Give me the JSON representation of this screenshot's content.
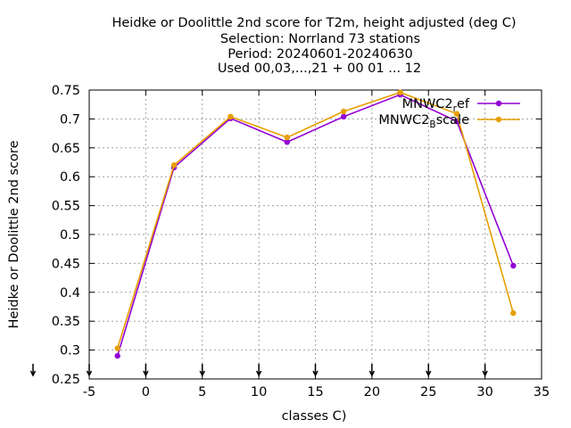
{
  "chart_data": {
    "type": "line",
    "title_lines": [
      "Heidke or Doolittle 2nd score  for T2m, height adjusted (deg C)",
      "Selection: Norrland     73 stations",
      "Period: 20240601-20240630",
      "Used 00,03,...,21 + 00 01 ... 12"
    ],
    "xlabel": "classes C)",
    "ylabel": "Heidke or Doolittle 2nd score",
    "xlim": [
      -5,
      35
    ],
    "ylim": [
      0.25,
      0.75
    ],
    "x_ticks": [
      "-5",
      "0",
      "5",
      "10",
      "15",
      "20",
      "25",
      "30",
      "35"
    ],
    "y_ticks": [
      "0.25",
      "0.3",
      "0.35",
      "0.4",
      "0.45",
      "0.5",
      "0.55",
      "0.6",
      "0.65",
      "0.7",
      "0.75"
    ],
    "grid": true,
    "legend_position": "top-right",
    "x": [
      -2.5,
      2.5,
      7.5,
      12.5,
      17.5,
      22.5,
      27.5,
      32.5
    ],
    "series": [
      {
        "name": "MNWC2_ref",
        "legend_main": "MNWC2",
        "legend_sub": "r",
        "legend_tail": "ef",
        "color": "#9400d3",
        "values": [
          0.29,
          0.616,
          0.701,
          0.66,
          0.704,
          0.742,
          0.696,
          0.446
        ]
      },
      {
        "name": "MNWC2_Bscale",
        "legend_main": "MNWC2",
        "legend_sub": "B",
        "legend_tail": "scale",
        "color": "#e69f00",
        "values": [
          0.303,
          0.62,
          0.704,
          0.668,
          0.713,
          0.746,
          0.709,
          0.364
        ]
      }
    ],
    "bottom_arrow_x": [
      -7.5,
      -5,
      0,
      5,
      10,
      15,
      20,
      25,
      30
    ]
  }
}
